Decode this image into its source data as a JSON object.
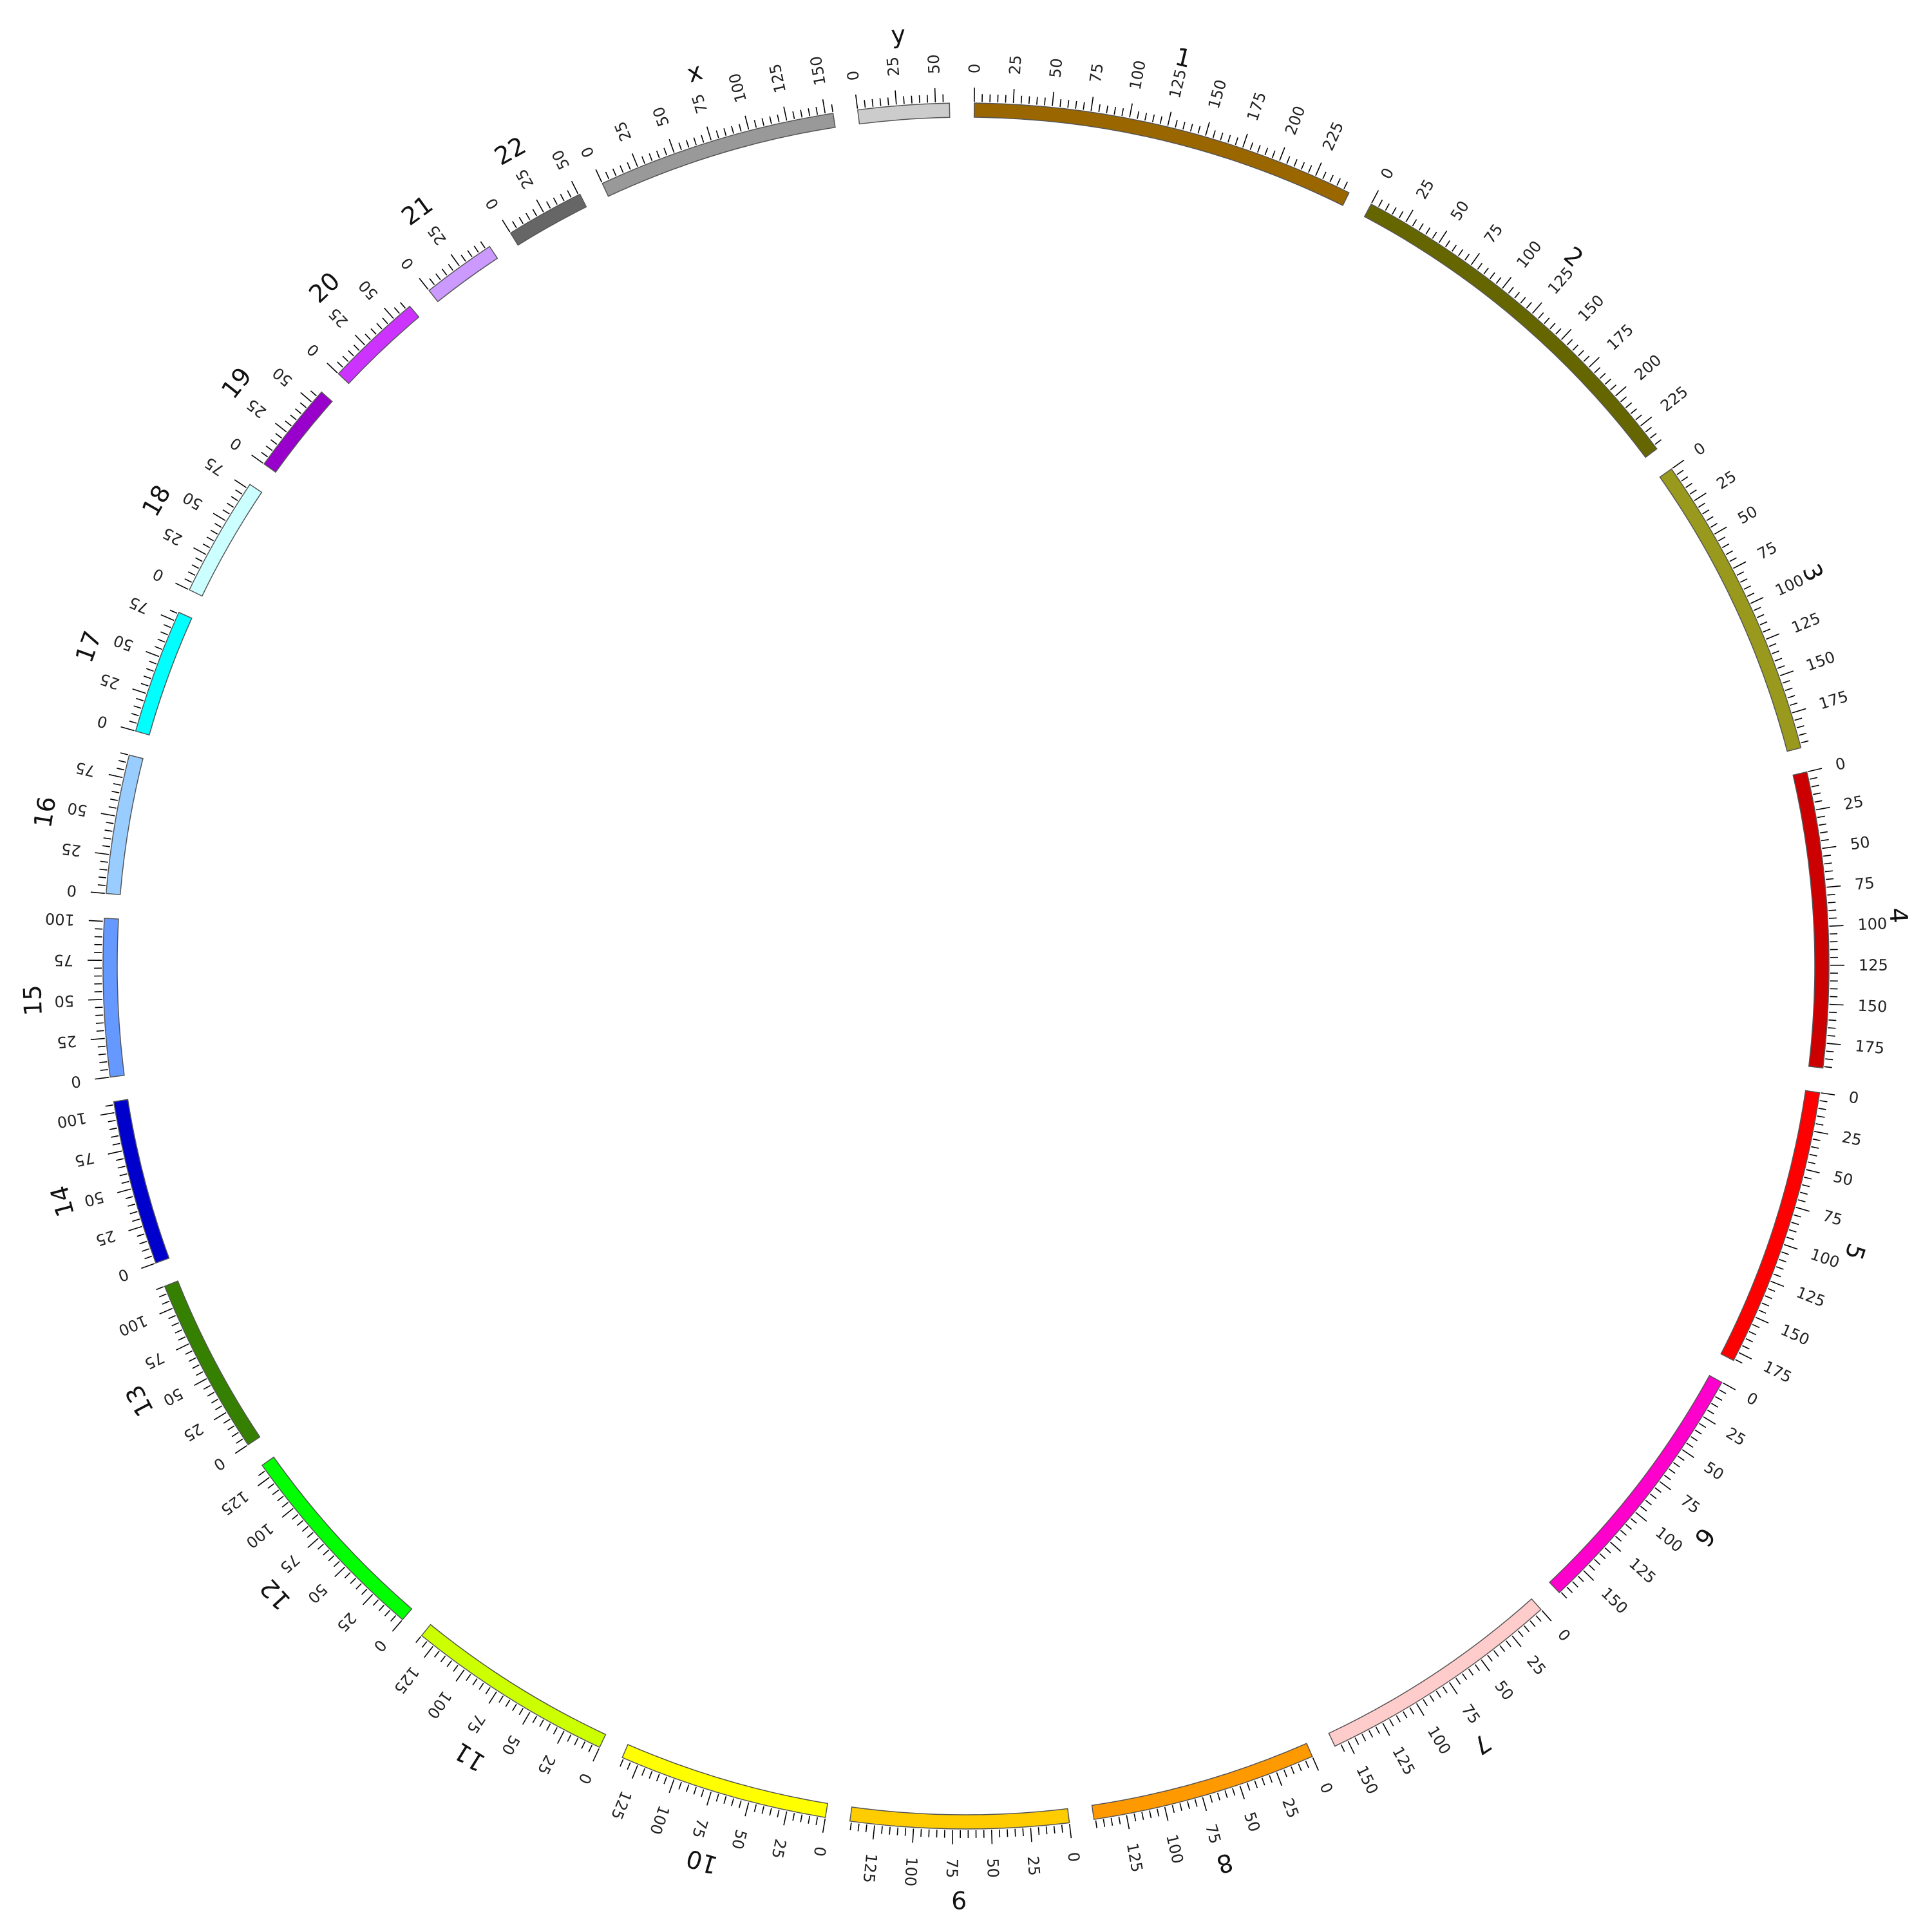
{
  "chart_data": {
    "type": "circos-ideogram",
    "tick_step_major": 25,
    "tick_step_minor": 5,
    "chromosomes": [
      {
        "name": "1",
        "length": 249,
        "color": "#996600"
      },
      {
        "name": "2",
        "length": 243,
        "color": "#666600"
      },
      {
        "name": "3",
        "length": 198,
        "color": "#99991E"
      },
      {
        "name": "4",
        "length": 191,
        "color": "#CC0000"
      },
      {
        "name": "5",
        "length": 181,
        "color": "#FF0000"
      },
      {
        "name": "6",
        "length": 171,
        "color": "#FF00CC"
      },
      {
        "name": "7",
        "length": 159,
        "color": "#FFCCCC"
      },
      {
        "name": "8",
        "length": 146,
        "color": "#FF9900"
      },
      {
        "name": "9",
        "length": 141,
        "color": "#FFCC00"
      },
      {
        "name": "10",
        "length": 136,
        "color": "#FFFF00"
      },
      {
        "name": "11",
        "length": 135,
        "color": "#CCFF00"
      },
      {
        "name": "12",
        "length": 134,
        "color": "#00FF00"
      },
      {
        "name": "13",
        "length": 115,
        "color": "#358000"
      },
      {
        "name": "14",
        "length": 107,
        "color": "#0000CC"
      },
      {
        "name": "15",
        "length": 102,
        "color": "#6699FF"
      },
      {
        "name": "16",
        "length": 90,
        "color": "#99CCFF"
      },
      {
        "name": "17",
        "length": 81,
        "color": "#00FFFF"
      },
      {
        "name": "18",
        "length": 78,
        "color": "#CCFFFF"
      },
      {
        "name": "19",
        "length": 59,
        "color": "#9900CC"
      },
      {
        "name": "20",
        "length": 63,
        "color": "#CC33FF"
      },
      {
        "name": "21",
        "length": 48,
        "color": "#CC99FF"
      },
      {
        "name": "22",
        "length": 51,
        "color": "#666666"
      },
      {
        "name": "x",
        "length": 155,
        "color": "#999999"
      },
      {
        "name": "y",
        "length": 59,
        "color": "#CCCCCC"
      }
    ]
  }
}
